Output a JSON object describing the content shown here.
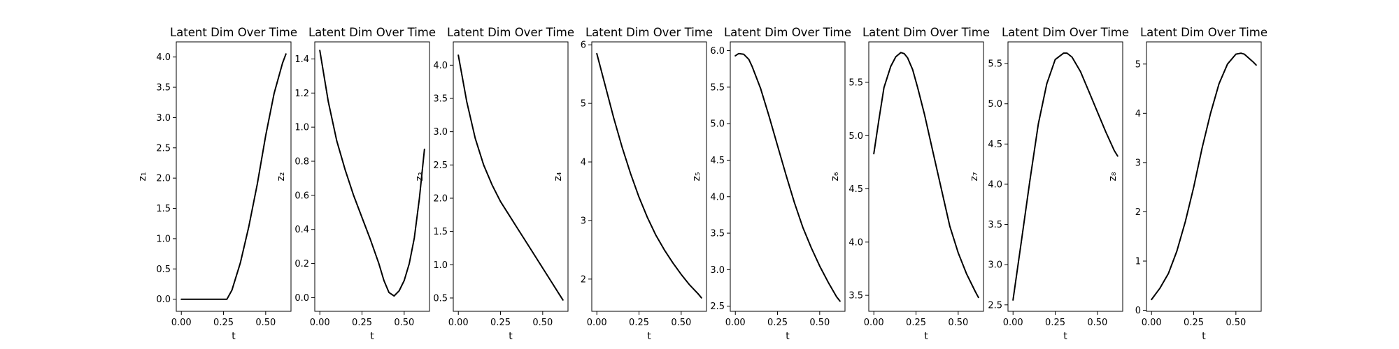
{
  "chart_data": [
    {
      "type": "line",
      "title": "Latent Dim Over Time",
      "xlabel": "t",
      "ylabel": "z₁",
      "xlim": [
        -0.03,
        0.65
      ],
      "ylim": [
        -0.2,
        4.25
      ],
      "xticks": [
        0,
        0.25,
        0.5
      ],
      "xtick_labels": [
        "0.00",
        "0.25",
        "0.50"
      ],
      "yticks": [
        0,
        0.5,
        1,
        1.5,
        2,
        2.5,
        3,
        3.5,
        4
      ],
      "ytick_labels": [
        "0.0",
        "0.5",
        "1.0",
        "1.5",
        "2.0",
        "2.5",
        "3.0",
        "3.5",
        "4.0"
      ],
      "series": [
        {
          "x": [
            0,
            0.1,
            0.2,
            0.27,
            0.3,
            0.35,
            0.4,
            0.45,
            0.5,
            0.55,
            0.6,
            0.62
          ],
          "y": [
            0,
            0,
            0,
            0,
            0.15,
            0.6,
            1.2,
            1.9,
            2.7,
            3.4,
            3.9,
            4.05
          ]
        }
      ]
    },
    {
      "type": "line",
      "title": "Latent Dim Over Time",
      "xlabel": "t",
      "ylabel": "z₂",
      "xlim": [
        -0.03,
        0.65
      ],
      "ylim": [
        -0.08,
        1.5
      ],
      "xticks": [
        0,
        0.25,
        0.5
      ],
      "xtick_labels": [
        "0.00",
        "0.25",
        "0.50"
      ],
      "yticks": [
        0,
        0.2,
        0.4,
        0.6,
        0.8,
        1,
        1.2,
        1.4
      ],
      "ytick_labels": [
        "0.0",
        "0.2",
        "0.4",
        "0.6",
        "0.8",
        "1.0",
        "1.2",
        "1.4"
      ],
      "series": [
        {
          "x": [
            0,
            0.05,
            0.1,
            0.15,
            0.2,
            0.25,
            0.3,
            0.35,
            0.38,
            0.41,
            0.44,
            0.47,
            0.5,
            0.53,
            0.56,
            0.59,
            0.62
          ],
          "y": [
            1.45,
            1.15,
            0.92,
            0.75,
            0.6,
            0.47,
            0.34,
            0.2,
            0.1,
            0.03,
            0.01,
            0.04,
            0.1,
            0.2,
            0.35,
            0.58,
            0.87
          ]
        }
      ]
    },
    {
      "type": "line",
      "title": "Latent Dim Over Time",
      "xlabel": "t",
      "ylabel": "z₃",
      "xlim": [
        -0.03,
        0.65
      ],
      "ylim": [
        0.3,
        4.35
      ],
      "xticks": [
        0,
        0.25,
        0.5
      ],
      "xtick_labels": [
        "0.00",
        "0.25",
        "0.50"
      ],
      "yticks": [
        0.5,
        1,
        1.5,
        2,
        2.5,
        3,
        3.5,
        4
      ],
      "ytick_labels": [
        "0.5",
        "1.0",
        "1.5",
        "2.0",
        "2.5",
        "3.0",
        "3.5",
        "4.0"
      ],
      "series": [
        {
          "x": [
            0,
            0.05,
            0.1,
            0.15,
            0.2,
            0.25,
            0.3,
            0.35,
            0.4,
            0.45,
            0.5,
            0.55,
            0.6,
            0.62
          ],
          "y": [
            4.15,
            3.45,
            2.9,
            2.5,
            2.2,
            1.95,
            1.75,
            1.55,
            1.35,
            1.15,
            0.95,
            0.75,
            0.55,
            0.47
          ]
        }
      ]
    },
    {
      "type": "line",
      "title": "Latent Dim Over Time",
      "xlabel": "t",
      "ylabel": "z₄",
      "xlim": [
        -0.03,
        0.65
      ],
      "ylim": [
        1.45,
        6.05
      ],
      "xticks": [
        0,
        0.25,
        0.5
      ],
      "xtick_labels": [
        "0.00",
        "0.25",
        "0.50"
      ],
      "yticks": [
        2,
        3,
        4,
        5,
        6
      ],
      "ytick_labels": [
        "2",
        "3",
        "4",
        "5",
        "6"
      ],
      "series": [
        {
          "x": [
            0,
            0.05,
            0.1,
            0.15,
            0.2,
            0.25,
            0.3,
            0.35,
            0.4,
            0.45,
            0.5,
            0.55,
            0.6,
            0.62
          ],
          "y": [
            5.85,
            5.3,
            4.75,
            4.25,
            3.8,
            3.4,
            3.05,
            2.75,
            2.5,
            2.28,
            2.08,
            1.9,
            1.75,
            1.68
          ]
        }
      ]
    },
    {
      "type": "line",
      "title": "Latent Dim Over Time",
      "xlabel": "t",
      "ylabel": "z₅",
      "xlim": [
        -0.03,
        0.65
      ],
      "ylim": [
        2.43,
        6.12
      ],
      "xticks": [
        0,
        0.25,
        0.5
      ],
      "xtick_labels": [
        "0.00",
        "0.25",
        "0.50"
      ],
      "yticks": [
        2.5,
        3,
        3.5,
        4,
        4.5,
        5,
        5.5,
        6
      ],
      "ytick_labels": [
        "2.5",
        "3.0",
        "3.5",
        "4.0",
        "4.5",
        "5.0",
        "5.5",
        "6.0"
      ],
      "series": [
        {
          "x": [
            0,
            0.02,
            0.05,
            0.08,
            0.1,
            0.15,
            0.2,
            0.25,
            0.3,
            0.35,
            0.4,
            0.45,
            0.5,
            0.55,
            0.6,
            0.62
          ],
          "y": [
            5.93,
            5.96,
            5.95,
            5.88,
            5.78,
            5.48,
            5.1,
            4.7,
            4.3,
            3.92,
            3.58,
            3.3,
            3.05,
            2.83,
            2.63,
            2.57
          ]
        }
      ]
    },
    {
      "type": "line",
      "title": "Latent Dim Over Time",
      "xlabel": "t",
      "ylabel": "z₆",
      "xlim": [
        -0.03,
        0.65
      ],
      "ylim": [
        3.35,
        5.88
      ],
      "xticks": [
        0,
        0.25,
        0.5
      ],
      "xtick_labels": [
        "0.00",
        "0.25",
        "0.50"
      ],
      "yticks": [
        3.5,
        4,
        4.5,
        5,
        5.5
      ],
      "ytick_labels": [
        "3.5",
        "4.0",
        "4.5",
        "5.0",
        "5.5"
      ],
      "series": [
        {
          "x": [
            0,
            0.03,
            0.06,
            0.1,
            0.13,
            0.16,
            0.18,
            0.2,
            0.23,
            0.26,
            0.3,
            0.35,
            0.4,
            0.45,
            0.5,
            0.55,
            0.6,
            0.62
          ],
          "y": [
            4.83,
            5.15,
            5.45,
            5.65,
            5.74,
            5.78,
            5.77,
            5.73,
            5.62,
            5.45,
            5.2,
            4.85,
            4.5,
            4.15,
            3.9,
            3.7,
            3.54,
            3.48
          ]
        }
      ]
    },
    {
      "type": "line",
      "title": "Latent Dim Over Time",
      "xlabel": "t",
      "ylabel": "z₇",
      "xlim": [
        -0.03,
        0.65
      ],
      "ylim": [
        2.42,
        5.77
      ],
      "xticks": [
        0,
        0.25,
        0.5
      ],
      "xtick_labels": [
        "0.00",
        "0.25",
        "0.50"
      ],
      "yticks": [
        2.5,
        3,
        3.5,
        4,
        4.5,
        5,
        5.5
      ],
      "ytick_labels": [
        "2.5",
        "3.0",
        "3.5",
        "4.0",
        "4.5",
        "5.0",
        "5.5"
      ],
      "series": [
        {
          "x": [
            0,
            0.05,
            0.1,
            0.15,
            0.2,
            0.25,
            0.3,
            0.32,
            0.35,
            0.4,
            0.45,
            0.5,
            0.55,
            0.6,
            0.62
          ],
          "y": [
            2.56,
            3.3,
            4.05,
            4.75,
            5.25,
            5.55,
            5.63,
            5.63,
            5.58,
            5.4,
            5.15,
            4.9,
            4.65,
            4.42,
            4.35
          ]
        }
      ]
    },
    {
      "type": "line",
      "title": "Latent Dim Over Time",
      "xlabel": "t",
      "ylabel": "z₈",
      "xlim": [
        -0.03,
        0.65
      ],
      "ylim": [
        -0.02,
        5.45
      ],
      "xticks": [
        0,
        0.25,
        0.5
      ],
      "xtick_labels": [
        "0.00",
        "0.25",
        "0.50"
      ],
      "yticks": [
        0,
        1,
        2,
        3,
        4,
        5
      ],
      "ytick_labels": [
        "0",
        "1",
        "2",
        "3",
        "4",
        "5"
      ],
      "series": [
        {
          "x": [
            0,
            0.05,
            0.1,
            0.15,
            0.2,
            0.25,
            0.3,
            0.35,
            0.4,
            0.45,
            0.5,
            0.53,
            0.55,
            0.6,
            0.62
          ],
          "y": [
            0.22,
            0.45,
            0.75,
            1.2,
            1.8,
            2.5,
            3.3,
            4.0,
            4.6,
            5.0,
            5.2,
            5.22,
            5.2,
            5.05,
            4.98
          ]
        }
      ]
    }
  ]
}
